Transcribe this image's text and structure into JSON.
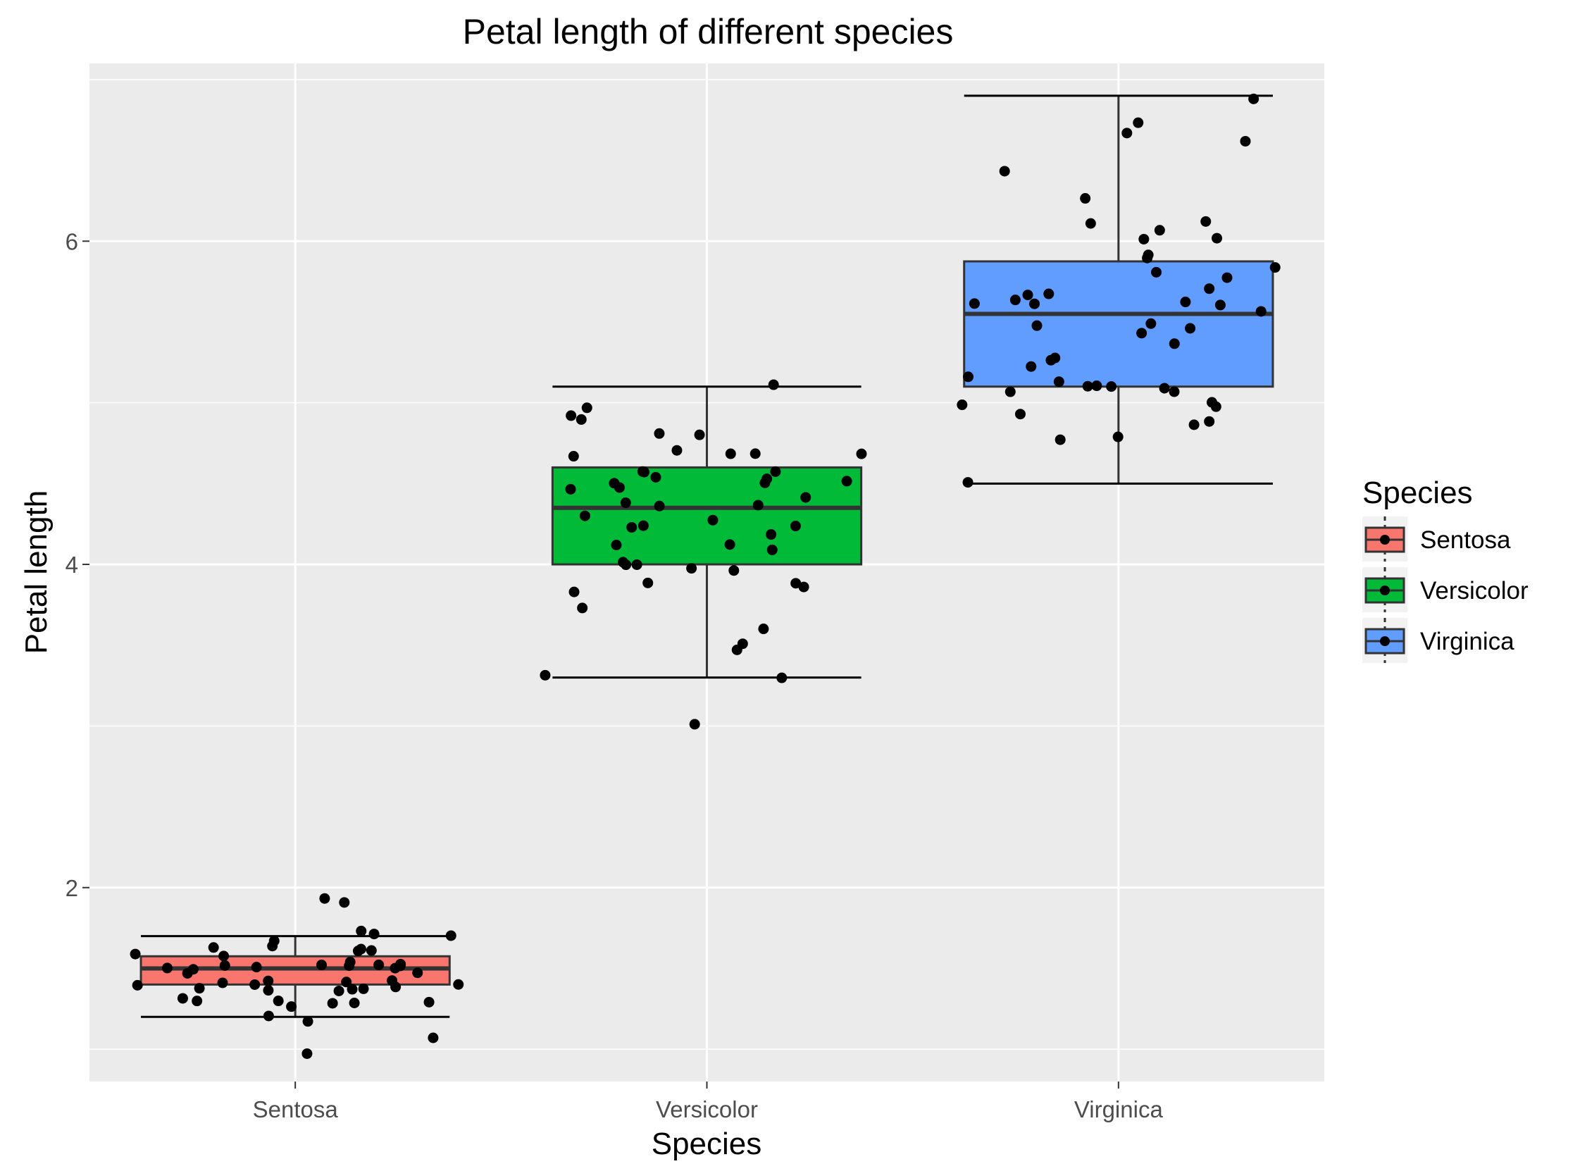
{
  "chart_data": {
    "type": "box",
    "title": "Petal length of different species",
    "xlabel": "Species",
    "ylabel": "Petal length",
    "categories": [
      "Sentosa",
      "Versicolor",
      "Virginica"
    ],
    "ylim": [
      0.8,
      7.1
    ],
    "yticks": [
      2,
      4,
      6
    ],
    "grid": true,
    "legend": {
      "title": "Species",
      "placement": "right",
      "entries": [
        "Sentosa",
        "Versicolor",
        "Virginica"
      ]
    },
    "colors": [
      "#F8766D",
      "#00BA38",
      "#619CFF"
    ],
    "boxes": [
      {
        "name": "Sentosa",
        "min": 1.2,
        "q1": 1.4,
        "median": 1.5,
        "q3": 1.575,
        "max": 1.7
      },
      {
        "name": "Versicolor",
        "min": 3.3,
        "q1": 4.0,
        "median": 4.35,
        "q3": 4.6,
        "max": 5.1
      },
      {
        "name": "Virginica",
        "min": 4.5,
        "q1": 5.1,
        "median": 5.55,
        "q3": 5.875,
        "max": 6.9
      }
    ],
    "points": [
      [
        1.4,
        1.4,
        1.3,
        1.5,
        1.4,
        1.7,
        1.4,
        1.5,
        1.4,
        1.5,
        1.5,
        1.6,
        1.4,
        1.1,
        1.2,
        1.5,
        1.3,
        1.4,
        1.7,
        1.5,
        1.7,
        1.5,
        1.0,
        1.7,
        1.9,
        1.6,
        1.6,
        1.5,
        1.4,
        1.6,
        1.6,
        1.5,
        1.5,
        1.4,
        1.5,
        1.2,
        1.3,
        1.4,
        1.3,
        1.5,
        1.3,
        1.3,
        1.3,
        1.6,
        1.9,
        1.4,
        1.6,
        1.4,
        1.5,
        1.4
      ],
      [
        4.7,
        4.5,
        4.9,
        4.0,
        4.6,
        4.5,
        4.7,
        3.3,
        4.6,
        3.9,
        3.5,
        4.2,
        4.0,
        4.7,
        3.6,
        4.4,
        4.5,
        4.1,
        4.5,
        3.9,
        4.8,
        4.0,
        4.9,
        4.7,
        4.3,
        4.4,
        4.8,
        5.0,
        4.5,
        3.5,
        3.8,
        3.7,
        3.9,
        5.1,
        4.5,
        4.5,
        4.7,
        4.4,
        4.1,
        4.0,
        4.4,
        4.6,
        4.0,
        3.3,
        4.2,
        4.2,
        4.2,
        4.3,
        3.0,
        4.1
      ],
      [
        6.0,
        5.1,
        5.9,
        5.6,
        5.8,
        6.6,
        4.5,
        6.3,
        5.8,
        6.1,
        5.1,
        5.3,
        5.5,
        5.0,
        5.1,
        5.3,
        5.5,
        6.7,
        6.9,
        5.0,
        5.7,
        4.9,
        6.7,
        4.9,
        5.7,
        6.0,
        4.8,
        4.9,
        5.6,
        5.8,
        6.1,
        6.4,
        5.6,
        5.1,
        5.6,
        6.1,
        5.6,
        5.5,
        4.8,
        5.4,
        5.6,
        5.1,
        5.1,
        5.9,
        5.7,
        5.2,
        5.0,
        5.2,
        5.4,
        5.1
      ]
    ]
  }
}
